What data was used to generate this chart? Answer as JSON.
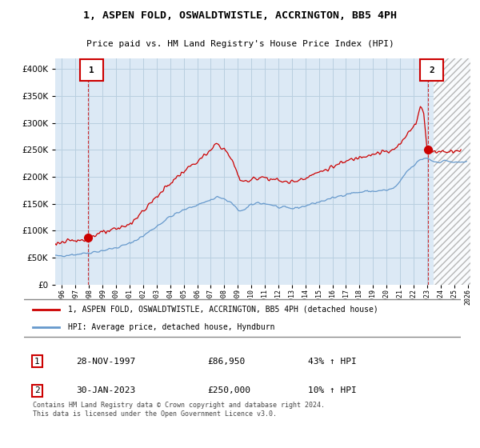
{
  "title": "1, ASPEN FOLD, OSWALDTWISTLE, ACCRINGTON, BB5 4PH",
  "subtitle": "Price paid vs. HM Land Registry's House Price Index (HPI)",
  "legend_line1": "1, ASPEN FOLD, OSWALDTWISTLE, ACCRINGTON, BB5 4PH (detached house)",
  "legend_line2": "HPI: Average price, detached house, Hyndburn",
  "annotation1_num": "1",
  "annotation1_date": "28-NOV-1997",
  "annotation1_price": "£86,950",
  "annotation1_hpi": "43% ↑ HPI",
  "annotation2_num": "2",
  "annotation2_date": "30-JAN-2023",
  "annotation2_price": "£250,000",
  "annotation2_hpi": "10% ↑ HPI",
  "footnote": "Contains HM Land Registry data © Crown copyright and database right 2024.\nThis data is licensed under the Open Government Licence v3.0.",
  "red_color": "#cc0000",
  "blue_color": "#6699cc",
  "chart_bg": "#dce9f5",
  "hatch_bg": "#ffffff",
  "grid_color": "#b8cfe0",
  "ylim": [
    0,
    420000
  ],
  "yticks": [
    0,
    50000,
    100000,
    150000,
    200000,
    250000,
    300000,
    350000,
    400000
  ],
  "sale1_x": 1997.917,
  "sale1_y": 86950,
  "sale2_x": 2023.083,
  "sale2_y": 250000,
  "xlim_start": 1995.5,
  "xlim_end": 2026.2,
  "hatch_start": 2023.5
}
